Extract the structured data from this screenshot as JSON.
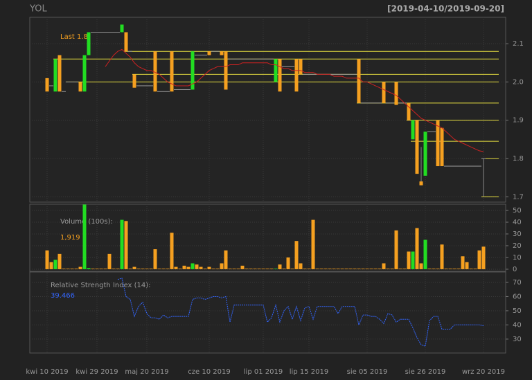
{
  "chart_data": [
    {
      "type": "candlestick",
      "title": "YOL",
      "subtitle": "[2019-04-10/2019-09-20]",
      "annotation": "Last 1.8",
      "categories": [
        "kwi 10 2019",
        null,
        null,
        null,
        null,
        null,
        null,
        null,
        null,
        null,
        null,
        null,
        "kwi 29 2019",
        null,
        null,
        null,
        null,
        null,
        null,
        null,
        null,
        null,
        null,
        null,
        "maj 20 2019",
        null,
        null,
        null,
        null,
        null,
        null,
        null,
        null,
        null,
        null,
        null,
        null,
        null,
        null,
        "cze 10 2019",
        null,
        null,
        null,
        null,
        null,
        null,
        null,
        null,
        null,
        null,
        null,
        null,
        "lip 01 2019",
        null,
        null,
        null,
        null,
        null,
        null,
        null,
        null,
        null,
        null,
        "lip 15 2019",
        null,
        null,
        null,
        null,
        null,
        null,
        null,
        null,
        null,
        null,
        null,
        null,
        null,
        "sie 05 2019",
        null,
        null,
        null,
        null,
        null,
        null,
        null,
        null,
        null,
        null,
        null,
        null,
        null,
        "sie 26 2019",
        null,
        null,
        null,
        null,
        null,
        null,
        null,
        null,
        null,
        null,
        null,
        null,
        null,
        "wrz 20 2019"
      ],
      "open": [
        2.01,
        1.99,
        1.975,
        2.07,
        1.975,
        2.0,
        2.0,
        2.0,
        2.0,
        1.975,
        2.07,
        2.13,
        2.13,
        2.13,
        2.13,
        2.13,
        2.13,
        2.13,
        2.13,
        2.13,
        2.08,
        2.02,
        1.99,
        1.99,
        1.99,
        1.99,
        2.08,
        1.975,
        1.975,
        1.975,
        2.08,
        1.98,
        1.98,
        1.98,
        1.98,
        1.98,
        2.07,
        2.07,
        2.07,
        2.08,
        2.08,
        2.08,
        2.08,
        2.08,
        2.06,
        2.06,
        2.06,
        2.06,
        2.06,
        2.06,
        2.06,
        2.06,
        2.06,
        2.06,
        2.06,
        2.0,
        2.06,
        2.04,
        2.04,
        2.04,
        2.06,
        2.06,
        2.02,
        2.02,
        2.02,
        2.02,
        2.02,
        2.02,
        2.02,
        2.02,
        2.02,
        2.02,
        2.02,
        2.02,
        2.02,
        2.06,
        1.945,
        1.945,
        1.945,
        1.945,
        1.945,
        2.0,
        1.945,
        1.945,
        2.0,
        1.945,
        1.945,
        1.945,
        1.85,
        1.9,
        1.74,
        1.755,
        1.87,
        1.87,
        1.9,
        1.88,
        1.78,
        1.78,
        1.78,
        1.78,
        1.78,
        1.78,
        1.78,
        1.78,
        1.78,
        1.8
      ],
      "high": [
        2.01,
        1.99,
        2.06,
        2.07,
        1.975,
        2.0,
        2.0,
        2.0,
        2.0,
        2.07,
        2.13,
        2.13,
        2.13,
        2.13,
        2.13,
        2.13,
        2.13,
        2.13,
        2.15,
        2.13,
        2.08,
        2.02,
        1.99,
        1.99,
        1.99,
        1.99,
        2.08,
        1.975,
        1.975,
        1.975,
        2.08,
        1.98,
        1.98,
        1.98,
        1.98,
        2.08,
        2.07,
        2.07,
        2.07,
        2.08,
        2.08,
        2.08,
        2.08,
        2.08,
        2.06,
        2.06,
        2.06,
        2.06,
        2.06,
        2.06,
        2.06,
        2.06,
        2.06,
        2.06,
        2.06,
        2.06,
        2.06,
        2.04,
        2.04,
        2.04,
        2.06,
        2.06,
        2.02,
        2.02,
        2.02,
        2.02,
        2.02,
        2.02,
        2.02,
        2.02,
        2.02,
        2.02,
        2.02,
        2.02,
        2.02,
        2.06,
        1.945,
        1.945,
        1.945,
        1.945,
        1.945,
        2.0,
        1.945,
        1.945,
        2.0,
        1.945,
        1.945,
        1.945,
        1.9,
        1.9,
        1.83,
        1.87,
        1.87,
        1.87,
        1.9,
        1.88,
        1.78,
        1.78,
        1.78,
        1.78,
        1.78,
        1.78,
        1.78,
        1.78,
        1.78,
        1.8
      ],
      "low": [
        1.975,
        1.99,
        1.975,
        1.975,
        1.975,
        2.0,
        2.0,
        2.0,
        1.975,
        1.975,
        2.07,
        2.13,
        2.13,
        2.13,
        2.13,
        2.13,
        2.13,
        2.13,
        2.13,
        2.08,
        2.08,
        1.985,
        1.99,
        1.99,
        1.99,
        1.99,
        1.975,
        1.975,
        1.975,
        1.975,
        1.975,
        1.98,
        1.98,
        1.98,
        1.98,
        1.98,
        2.07,
        2.07,
        2.07,
        2.07,
        2.08,
        2.08,
        2.07,
        1.98,
        2.06,
        2.06,
        2.06,
        2.06,
        2.06,
        2.06,
        2.06,
        2.06,
        2.06,
        2.06,
        2.06,
        2.0,
        1.975,
        2.04,
        2.04,
        2.04,
        1.975,
        2.02,
        2.02,
        2.02,
        2.02,
        2.02,
        2.02,
        2.02,
        2.02,
        2.02,
        2.02,
        2.02,
        2.02,
        2.02,
        2.02,
        1.945,
        1.945,
        1.945,
        1.945,
        1.945,
        1.945,
        1.945,
        1.945,
        1.945,
        1.94,
        1.945,
        1.945,
        1.9,
        1.85,
        1.76,
        1.73,
        1.755,
        1.87,
        1.87,
        1.78,
        1.78,
        1.78,
        1.78,
        1.78,
        1.78,
        1.78,
        1.78,
        1.78,
        1.78,
        1.78,
        1.7
      ],
      "close": [
        1.975,
        1.99,
        2.06,
        1.975,
        1.975,
        2.0,
        2.0,
        2.0,
        1.975,
        2.07,
        2.13,
        2.13,
        2.13,
        2.13,
        2.13,
        2.13,
        2.13,
        2.13,
        2.15,
        2.08,
        2.08,
        1.985,
        1.99,
        1.99,
        1.99,
        1.99,
        1.975,
        1.975,
        1.975,
        1.975,
        1.975,
        1.98,
        1.98,
        1.98,
        1.98,
        2.08,
        2.07,
        2.07,
        2.07,
        2.07,
        2.08,
        2.08,
        2.07,
        1.98,
        2.06,
        2.06,
        2.06,
        2.06,
        2.06,
        2.06,
        2.06,
        2.06,
        2.06,
        2.06,
        2.06,
        2.06,
        1.975,
        2.04,
        2.04,
        2.04,
        1.975,
        2.02,
        2.02,
        2.02,
        2.02,
        2.02,
        2.02,
        2.02,
        2.02,
        2.02,
        2.02,
        2.02,
        2.02,
        2.02,
        2.02,
        1.945,
        1.945,
        1.945,
        1.945,
        1.945,
        1.945,
        1.945,
        1.945,
        1.945,
        1.94,
        1.945,
        1.945,
        1.9,
        1.9,
        1.76,
        1.73,
        1.87,
        1.87,
        1.87,
        1.78,
        1.78,
        1.78,
        1.78,
        1.78,
        1.78,
        1.78,
        1.78,
        1.78,
        1.78,
        1.78,
        1.8
      ],
      "sma": [
        null,
        null,
        null,
        null,
        null,
        null,
        null,
        null,
        null,
        null,
        null,
        null,
        null,
        null,
        2.04,
        2.055,
        2.07,
        2.08,
        2.085,
        2.075,
        2.065,
        2.05,
        2.04,
        2.035,
        2.03,
        2.03,
        2.025,
        2.02,
        2.01,
        2.0,
        1.995,
        1.99,
        1.99,
        1.99,
        1.99,
        1.995,
        2.0,
        2.01,
        2.02,
        2.03,
        2.035,
        2.04,
        2.04,
        2.04,
        2.045,
        2.045,
        2.045,
        2.05,
        2.05,
        2.05,
        2.05,
        2.05,
        2.05,
        2.05,
        2.045,
        2.045,
        2.04,
        2.035,
        2.035,
        2.03,
        2.03,
        2.03,
        2.025,
        2.025,
        2.025,
        2.02,
        2.02,
        2.02,
        2.02,
        2.015,
        2.015,
        2.015,
        2.01,
        2.01,
        2.01,
        2.01,
        2.0,
        2.0,
        1.995,
        1.99,
        1.985,
        1.98,
        1.975,
        1.97,
        1.965,
        1.955,
        1.945,
        1.935,
        1.925,
        1.915,
        1.905,
        1.9,
        1.895,
        1.89,
        1.885,
        1.88,
        1.87,
        1.86,
        1.85,
        1.845,
        1.84,
        1.835,
        1.83,
        1.825,
        1.82,
        1.818
      ],
      "levels": [
        2.08,
        2.06,
        2.02,
        2.0,
        1.945,
        1.9,
        1.845,
        1.8,
        1.7
      ],
      "up_color": "#22dd22",
      "down_color": "#f5a020",
      "flat_color": "#9a9a9a",
      "sma_color": "#cc2222",
      "level_color": "#e8e040",
      "ylim": [
        1.686,
        2.169
      ],
      "yticks": [
        1.7,
        1.8,
        1.9,
        {
          "value": 2,
          "label": "2.0"
        },
        2.1
      ],
      "grid": true
    },
    {
      "type": "bar",
      "title": "Volume (100s):",
      "value_label": "1,919",
      "values": [
        16,
        6,
        8,
        13,
        0.5,
        0.5,
        0.5,
        0.5,
        2,
        55,
        1,
        0.5,
        0.5,
        0.5,
        0.5,
        13,
        0.5,
        0.5,
        42,
        41,
        0.5,
        2,
        0.5,
        0.5,
        0.5,
        0.5,
        17,
        0.5,
        0.5,
        0.5,
        31,
        2,
        0.5,
        3,
        2,
        5,
        4,
        2,
        0.5,
        2,
        0.5,
        0.5,
        5,
        16,
        0.5,
        0.5,
        0.5,
        3,
        0.5,
        0.5,
        0.5,
        0.5,
        0.5,
        0.5,
        0.5,
        0.5,
        4,
        0.5,
        10,
        0.5,
        24,
        5,
        0.5,
        0.5,
        42,
        0.5,
        0.5,
        0.5,
        0.5,
        0.5,
        0.5,
        0.5,
        0.5,
        0.5,
        0.5,
        0.5,
        0.5,
        0.5,
        0.5,
        0.5,
        0.5,
        5,
        0.5,
        0.5,
        33,
        0.5,
        0.5,
        15,
        15,
        35,
        5,
        25,
        0.5,
        0.5,
        0.5,
        21,
        0.5,
        0.5,
        0.5,
        0.5,
        11,
        6,
        0.5,
        0.5,
        16,
        19.19
      ],
      "ylim": [
        -1.8,
        55.3
      ],
      "yticks": [
        0,
        10,
        20,
        30,
        40,
        50
      ],
      "grid": true
    },
    {
      "type": "line",
      "title": "Relative Strength Index (14):",
      "value_label": "39.466",
      "color": "#3366ff",
      "values": [
        null,
        null,
        null,
        null,
        null,
        null,
        null,
        null,
        null,
        null,
        null,
        null,
        null,
        null,
        null,
        null,
        null,
        72,
        73,
        60,
        58,
        46,
        53,
        56,
        48,
        45,
        45,
        44,
        47,
        45,
        46,
        46,
        46,
        46,
        46,
        58,
        59,
        59,
        58,
        59,
        60,
        60,
        59,
        60,
        42,
        54,
        54,
        54,
        54,
        54,
        54,
        54,
        54,
        42,
        45,
        54,
        42,
        50,
        53,
        44,
        53,
        43,
        52,
        53,
        44,
        53,
        53,
        53,
        53,
        53,
        48,
        53,
        53,
        53,
        53,
        40,
        47,
        47,
        46,
        46,
        44,
        41,
        48,
        47,
        42,
        44,
        44,
        44,
        38,
        31,
        26,
        25,
        43,
        46,
        46,
        37,
        37,
        37,
        40,
        40,
        40,
        40,
        40,
        40,
        40,
        39.466
      ],
      "ylim": [
        20.2,
        77.3
      ],
      "yticks": [
        30,
        40,
        50,
        60,
        70
      ],
      "grid": true
    }
  ]
}
